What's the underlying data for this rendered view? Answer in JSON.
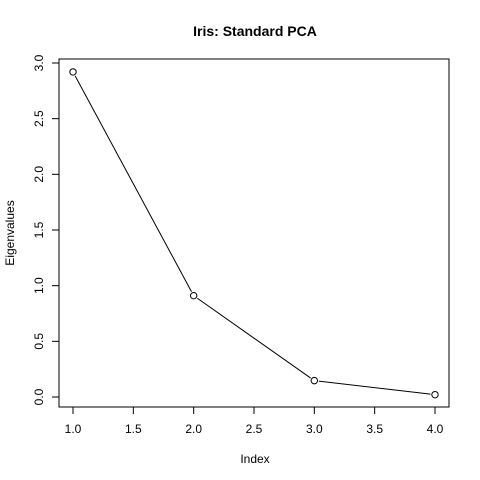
{
  "chart_data": {
    "type": "line",
    "title": "Iris: Standard PCA",
    "xlabel": "Index",
    "ylabel": "Eigenvalues",
    "x": [
      1,
      2,
      3,
      4
    ],
    "y": [
      2.92,
      0.91,
      0.147,
      0.021
    ],
    "xlim": [
      1,
      4
    ],
    "ylim": [
      0,
      3
    ],
    "x_ticks": [
      1.0,
      1.5,
      2.0,
      2.5,
      3.0,
      3.5,
      4.0
    ],
    "x_tick_labels": [
      "1.0",
      "1.5",
      "2.0",
      "2.5",
      "3.0",
      "3.5",
      "4.0"
    ],
    "y_ticks": [
      0.0,
      0.5,
      1.0,
      1.5,
      2.0,
      2.5,
      3.0
    ],
    "y_tick_labels": [
      "0.0",
      "0.5",
      "1.0",
      "1.5",
      "2.0",
      "2.5",
      "3.0"
    ],
    "grid": false,
    "legend": "none",
    "marker": "open-circle",
    "line_color": "#000000"
  }
}
